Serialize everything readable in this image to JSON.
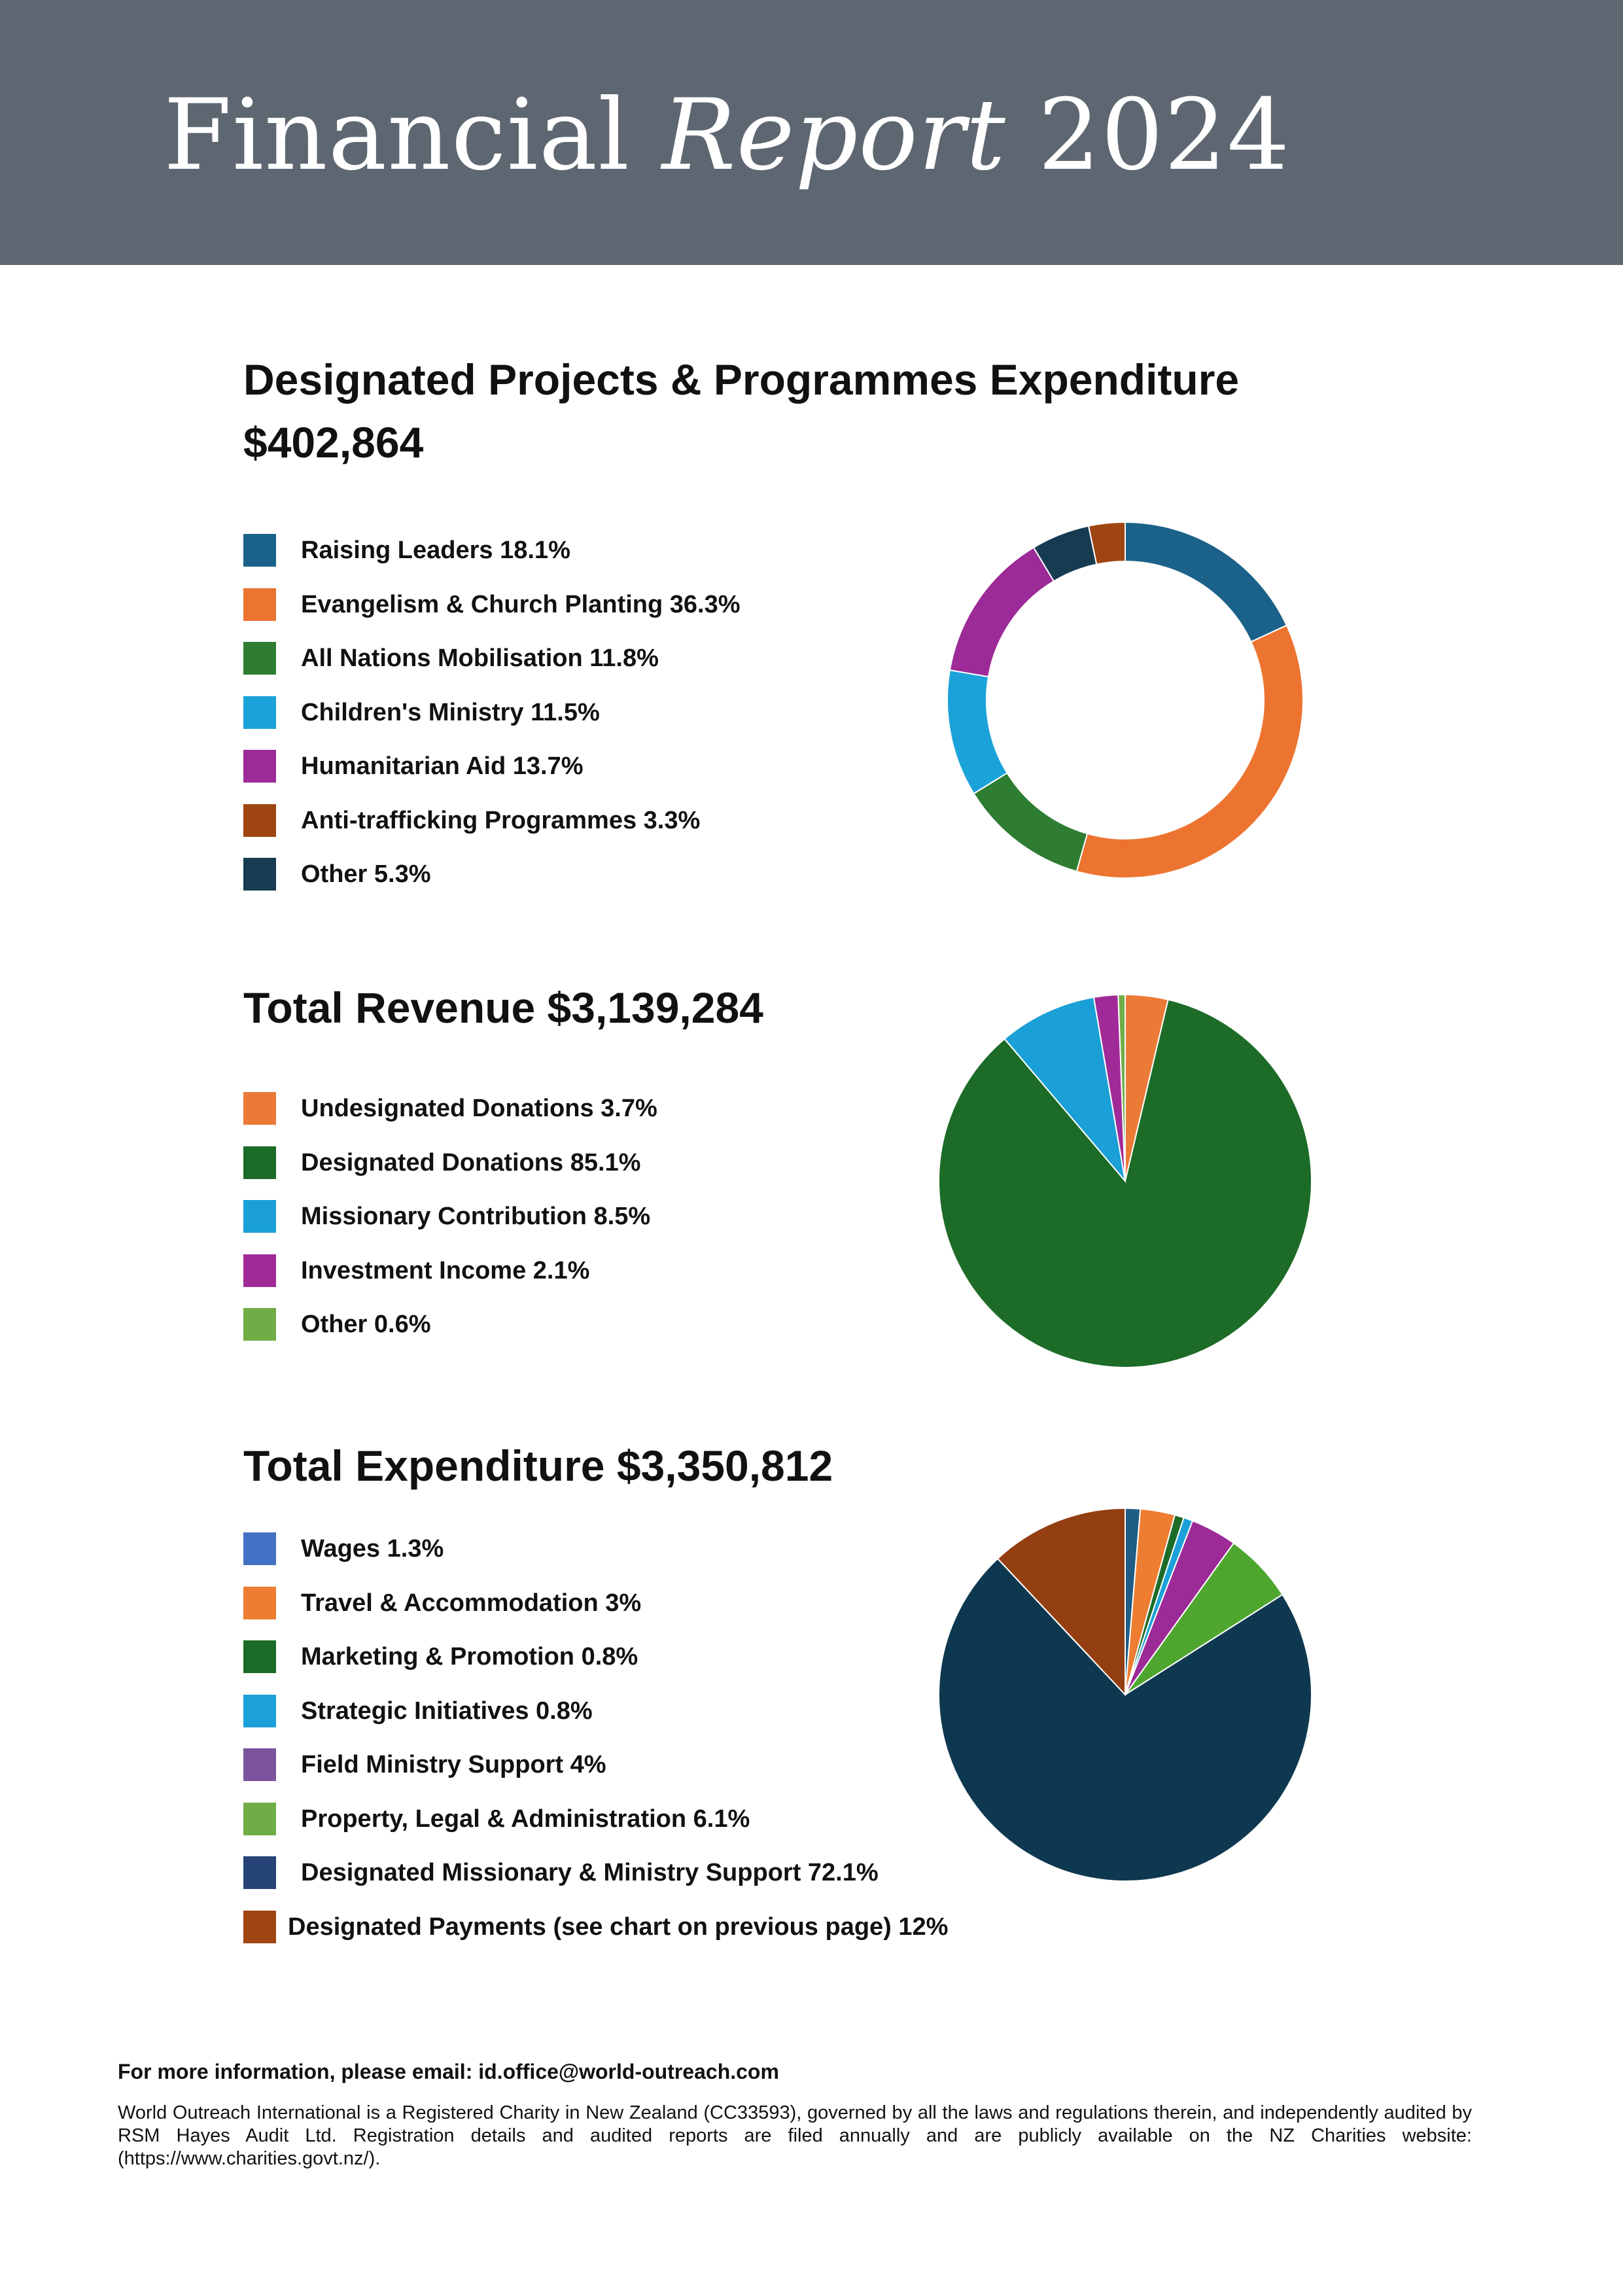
{
  "header": {
    "title_word1": "Financial",
    "title_word2": "Report",
    "title_word3": "2024"
  },
  "chart_data": [
    {
      "type": "pie",
      "variant": "donut",
      "title": "Designated Projects & Programmes Expenditure",
      "total": "$402,864",
      "categories": [
        "Raising Leaders 18.1%",
        "Evangelism & Church Planting 36.3%",
        "All Nations Mobilisation 11.8%",
        "Children's Ministry 11.5%",
        "Humanitarian Aid 13.7%",
        "Anti-trafficking Programmes 3.3%",
        "Other 5.3%"
      ],
      "values": [
        18.1,
        36.3,
        11.8,
        11.5,
        13.7,
        3.3,
        5.3
      ],
      "colors": [
        "#1a6289",
        "#ec7430",
        "#2e7d32",
        "#1ba3d9",
        "#9c2a97",
        "#9e4512",
        "#173b51"
      ],
      "slice_order": [
        0,
        1,
        2,
        3,
        4,
        6,
        5
      ]
    },
    {
      "type": "pie",
      "title": "Total Revenue $3,139,284",
      "categories": [
        "Undesignated Donations 3.7%",
        "Designated Donations 85.1%",
        "Missionary Contribution 8.5%",
        "Investment Income 2.1%",
        "Other 0.6%"
      ],
      "values": [
        3.7,
        85.1,
        8.5,
        2.1,
        0.6
      ],
      "colors": [
        "#ec7a37",
        "#1c6b27",
        "#1a9fd6",
        "#a02b98",
        "#71ad47"
      ],
      "slice_order": [
        0,
        1,
        2,
        3,
        4
      ]
    },
    {
      "type": "pie",
      "title": "Total Expenditure $3,350,812",
      "categories": [
        "Wages 1.3%",
        "Travel & Accommodation 3%",
        "Marketing & Promotion 0.8%",
        "Strategic Initiatives 0.8%",
        "Field Ministry Support 4%",
        "Property, Legal & Administration 6.1%",
        "Designated Missionary & Ministry Support 72.1%",
        "Designated Payments (see chart on previous page) 12%"
      ],
      "values": [
        1.3,
        3,
        0.8,
        0.8,
        4,
        6.1,
        72.1,
        12
      ],
      "colors": [
        "#4472c4",
        "#ed7d31",
        "#1c6b27",
        "#1ba1d8",
        "#7b549d",
        "#70ad47",
        "#264478",
        "#9e4512"
      ],
      "slice_colors": [
        "#1f5d84",
        "#ed7d31",
        "#1c6b27",
        "#1ba1d8",
        "#9c2a97",
        "#4ea62e",
        "#0e384f",
        "#943f12"
      ],
      "slice_order": [
        0,
        1,
        2,
        3,
        4,
        5,
        6,
        7
      ]
    }
  ],
  "footer": {
    "email_line": "For more information, please email: id.office@world-outreach.com",
    "note": "World Outreach International is a Registered Charity in New Zealand (CC33593), governed by all the laws and regulations therein, and independently audited by RSM Hayes Audit Ltd. Registration details and audited reports are filed annually and are publicly available on the NZ Charities website: (https://www.charities.govt.nz/)."
  }
}
